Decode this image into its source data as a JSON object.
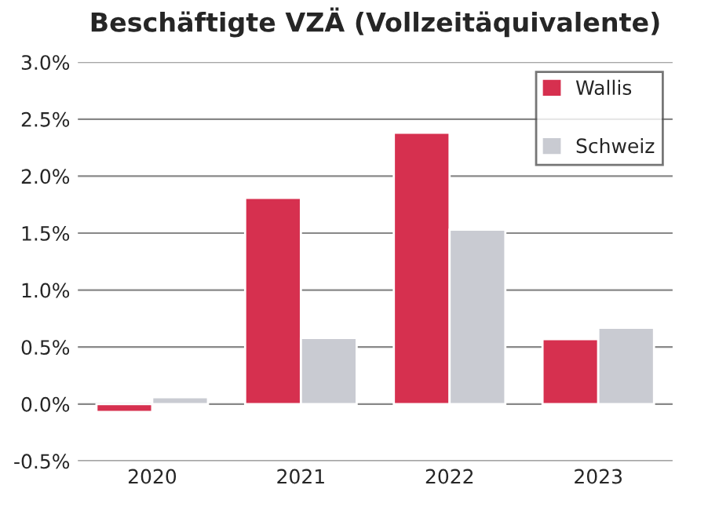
{
  "chart_data": {
    "type": "bar",
    "title": "Beschäftigte VZÄ (Vollzeitäquivalente)",
    "categories": [
      "2020",
      "2021",
      "2022",
      "2023"
    ],
    "series": [
      {
        "name": "Wallis",
        "color": "#d6304f",
        "values": [
          -0.07,
          1.81,
          2.38,
          0.57
        ]
      },
      {
        "name": "Schweiz",
        "color": "#c9cbd2",
        "values": [
          0.06,
          0.58,
          1.53,
          0.67
        ]
      }
    ],
    "ylim": [
      -0.5,
      3.0
    ],
    "yticks": [
      {
        "value": -0.5,
        "label": "-0.5%"
      },
      {
        "value": 0,
        "label": "0.0%"
      },
      {
        "value": 0.5,
        "label": "0.5%"
      },
      {
        "value": 1.0,
        "label": "1.0%"
      },
      {
        "value": 1.5,
        "label": "1.5%"
      },
      {
        "value": 2.0,
        "label": "2.0%"
      },
      {
        "value": 2.5,
        "label": "2.5%"
      },
      {
        "value": 3.0,
        "label": "3.0%"
      }
    ],
    "grid": "y",
    "legend": "top right"
  }
}
